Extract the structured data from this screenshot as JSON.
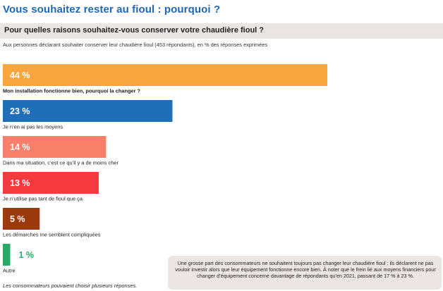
{
  "header": {
    "title": "Vous souhaitez rester au fioul : pourquoi ?",
    "question": "Pour quelles raisons souhaitez-vous conserver votre chaudière fioul ?",
    "subtitle": "Aux personnes déclarant souhaiter conserver leur chaudière fioul (453 répondants), en % des réponses exprimées"
  },
  "chart_data": {
    "type": "bar",
    "orientation": "horizontal",
    "categories": [
      "Mon installation fonctionne bien, pourquoi la changer ?",
      "Je n’en ai pas les moyens",
      "Dans ma situation, c’est ce qu’il y a de moins cher",
      "Je n’utilise pas tant de fioul que ça",
      "Les démarches me semblent compliquées",
      "Autre"
    ],
    "values": [
      44,
      23,
      14,
      13,
      5,
      1
    ],
    "value_labels": [
      "44 %",
      "23 %",
      "14 %",
      "13 %",
      "5 %",
      "1 %"
    ],
    "colors": [
      "#f9a53f",
      "#1f6fb8",
      "#f8806a",
      "#f43a3f",
      "#9b3a0f",
      "#2aa868"
    ],
    "bold_category_index": 0,
    "unit": "%",
    "xlim": [
      0,
      44
    ]
  },
  "footnote": "Les consommateurs pouvaient choisir plusieurs réponses.",
  "note": "Une grosse part des consommateurs ne souhaitent toujours pas changer leur chaudière fioul : ils déclarent ne pas vouloir investir alors que leur équipement fonctionne encore bien. À noter que le frein lié aux moyens financiers pour changer d’équipement concerne davantage de répondants qu’en 2021, passant de 17 % à 23 %."
}
